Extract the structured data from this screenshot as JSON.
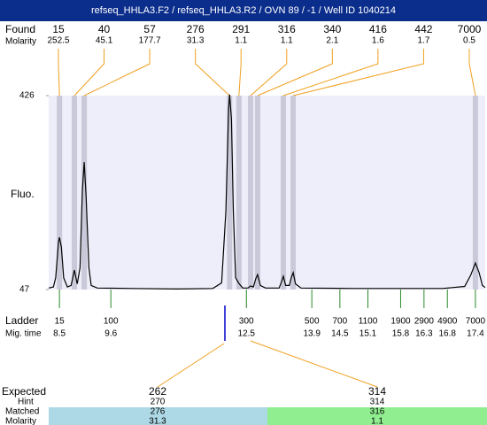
{
  "title": "refseq_HHLA3.F2 / refseq_HHLA3.R2 / OVN 89 / -1 / Well ID 1040214",
  "found": {
    "label": "Found",
    "molarity_label": "Molarity"
  },
  "fluo_label": "Fluo.",
  "ladder_label": "Ladder",
  "mig_time_label": "Mig. time",
  "chart_data": {
    "type": "electropherogram",
    "color": "#000000",
    "xlim": [
      8.27,
      17.61
    ],
    "ylim": [
      47,
      426
    ],
    "yticks": [
      47,
      426
    ],
    "x": [
      8.27,
      8.37,
      8.42,
      8.48,
      8.5,
      8.54,
      8.59,
      8.67,
      8.75,
      8.82,
      8.88,
      8.94,
      8.99,
      9.03,
      9.07,
      9.13,
      9.18,
      9.31,
      10.07,
      11.02,
      11.78,
      11.97,
      12.06,
      12.12,
      12.14,
      12.18,
      12.22,
      12.27,
      12.34,
      12.42,
      12.53,
      12.59,
      12.65,
      12.7,
      12.74,
      12.8,
      12.91,
      13.2,
      13.25,
      13.29,
      13.34,
      13.42,
      13.46,
      13.5,
      13.55,
      13.67,
      14.81,
      16.7,
      17.17,
      17.3,
      17.4,
      17.48,
      17.55,
      17.61
    ],
    "values": [
      50,
      52,
      70,
      140,
      149,
      130,
      70,
      52,
      55,
      85,
      58,
      90,
      240,
      296,
      230,
      90,
      55,
      50,
      49,
      48,
      49,
      60,
      200,
      400,
      428,
      380,
      200,
      70,
      59,
      50,
      50,
      54,
      52,
      68,
      76,
      55,
      50,
      50,
      62,
      73,
      55,
      55,
      70,
      80,
      58,
      50,
      49,
      49,
      53,
      75,
      99,
      80,
      55,
      51
    ],
    "peaks": {
      "sizes": [
        15,
        40,
        57,
        276,
        291,
        316,
        340,
        416,
        442,
        7000
      ],
      "molarity": [
        252.5,
        45.1,
        177.7,
        31.3,
        1.1,
        1.1,
        2.1,
        1.6,
        1.7,
        0.5
      ],
      "x": [
        8.5,
        8.82,
        9.03,
        12.14,
        12.34,
        12.59,
        12.74,
        13.29,
        13.5,
        17.4
      ]
    },
    "ladder": {
      "sizes": [
        15,
        100,
        300,
        500,
        700,
        1100,
        1900,
        2900,
        4900,
        7000
      ],
      "x": [
        8.5,
        9.6,
        12.5,
        13.9,
        14.5,
        15.1,
        15.8,
        16.3,
        16.8,
        17.4
      ]
    }
  },
  "expected": {
    "label": "Expected",
    "hint_label": "Hint",
    "matched_label": "Matched",
    "molarity_label": "Molarity",
    "columns": [
      {
        "expected": 262,
        "hint": 270,
        "matched": 276,
        "molarity": 31.3
      },
      {
        "expected": 314,
        "hint": 314,
        "matched": 316,
        "molarity": 1.1
      }
    ]
  }
}
